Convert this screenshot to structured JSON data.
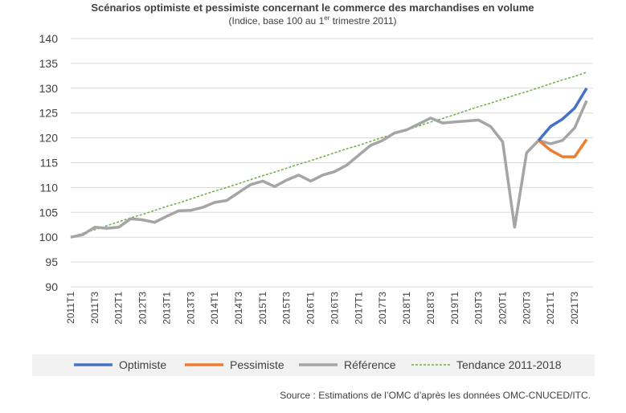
{
  "chart_data": {
    "type": "line",
    "title": "Scénarios optimiste et pessimiste concernant le commerce des marchandises en volume",
    "subtitle": [
      "(Indice, base 100 au 1",
      "er",
      " trimestre 2011)"
    ],
    "source": "Source : Estimations de l’OMC d’après les données OMC-CNUCED/ITC.",
    "categories": [
      "2011T1",
      null,
      "2011T3",
      null,
      "2012T1",
      null,
      "2012T3",
      null,
      "2013T1",
      null,
      "2013T3",
      null,
      "2014T1",
      null,
      "2014T3",
      null,
      "2015T1",
      null,
      "2015T3",
      null,
      "2016T1",
      null,
      "2016T3",
      null,
      "2017T1",
      null,
      "2017T3",
      null,
      "2018T1",
      null,
      "2018T3",
      null,
      "2019T1",
      null,
      "2019T3",
      null,
      "2020T1",
      null,
      "2020T3",
      null,
      "2021T1",
      null,
      "2021T3",
      null
    ],
    "ylim": [
      90,
      140
    ],
    "yticks": [
      90,
      95,
      100,
      105,
      110,
      115,
      120,
      125,
      130,
      135,
      140
    ],
    "grid": true,
    "series": [
      {
        "name": "Optimiste",
        "color": "#4472c4",
        "dash": false,
        "values": [
          null,
          null,
          null,
          null,
          null,
          null,
          null,
          null,
          null,
          null,
          null,
          null,
          null,
          null,
          null,
          null,
          null,
          null,
          null,
          null,
          null,
          null,
          null,
          null,
          null,
          null,
          null,
          null,
          null,
          null,
          null,
          null,
          null,
          null,
          null,
          null,
          null,
          null,
          null,
          119.5,
          122.3,
          123.8,
          126,
          130
        ]
      },
      {
        "name": "Pessimiste",
        "color": "#ed7d31",
        "dash": false,
        "values": [
          null,
          null,
          null,
          null,
          null,
          null,
          null,
          null,
          null,
          null,
          null,
          null,
          null,
          null,
          null,
          null,
          null,
          null,
          null,
          null,
          null,
          null,
          null,
          null,
          null,
          null,
          null,
          null,
          null,
          null,
          null,
          null,
          null,
          null,
          null,
          null,
          null,
          null,
          null,
          119.5,
          117.5,
          116.2,
          116.2,
          119.7
        ]
      },
      {
        "name": "Référence",
        "color": "#a5a5a5",
        "dash": false,
        "values": [
          100,
          100.5,
          102,
          101.8,
          102,
          103.7,
          103.5,
          103,
          104.2,
          105.3,
          105.4,
          106,
          107,
          107.4,
          109,
          110.6,
          111.3,
          110.2,
          111.5,
          112.5,
          111.3,
          112.5,
          113.2,
          114.5,
          116.5,
          118.5,
          119.5,
          121,
          121.6,
          122.8,
          124,
          123,
          123.2,
          123.4,
          123.6,
          122.3,
          119.2,
          102,
          117,
          119.5,
          118.8,
          119.5,
          122,
          127.5
        ]
      },
      {
        "name": "Tendance 2011-2018",
        "color": "#70ad47",
        "dash": true,
        "values": [
          100,
          100.8,
          101.5,
          102.3,
          103.1,
          103.9,
          104.6,
          105.4,
          106.2,
          106.9,
          107.7,
          108.5,
          109.3,
          110,
          110.8,
          111.6,
          112.4,
          113.1,
          113.9,
          114.7,
          115.4,
          116.2,
          117,
          117.8,
          118.5,
          119.3,
          120.1,
          120.8,
          121.6,
          122.4,
          123.2,
          123.9,
          124.7,
          125.5,
          126.3,
          127,
          127.8,
          128.6,
          129.3,
          130.1,
          130.9,
          131.7,
          132.4,
          133.2
        ]
      }
    ]
  }
}
